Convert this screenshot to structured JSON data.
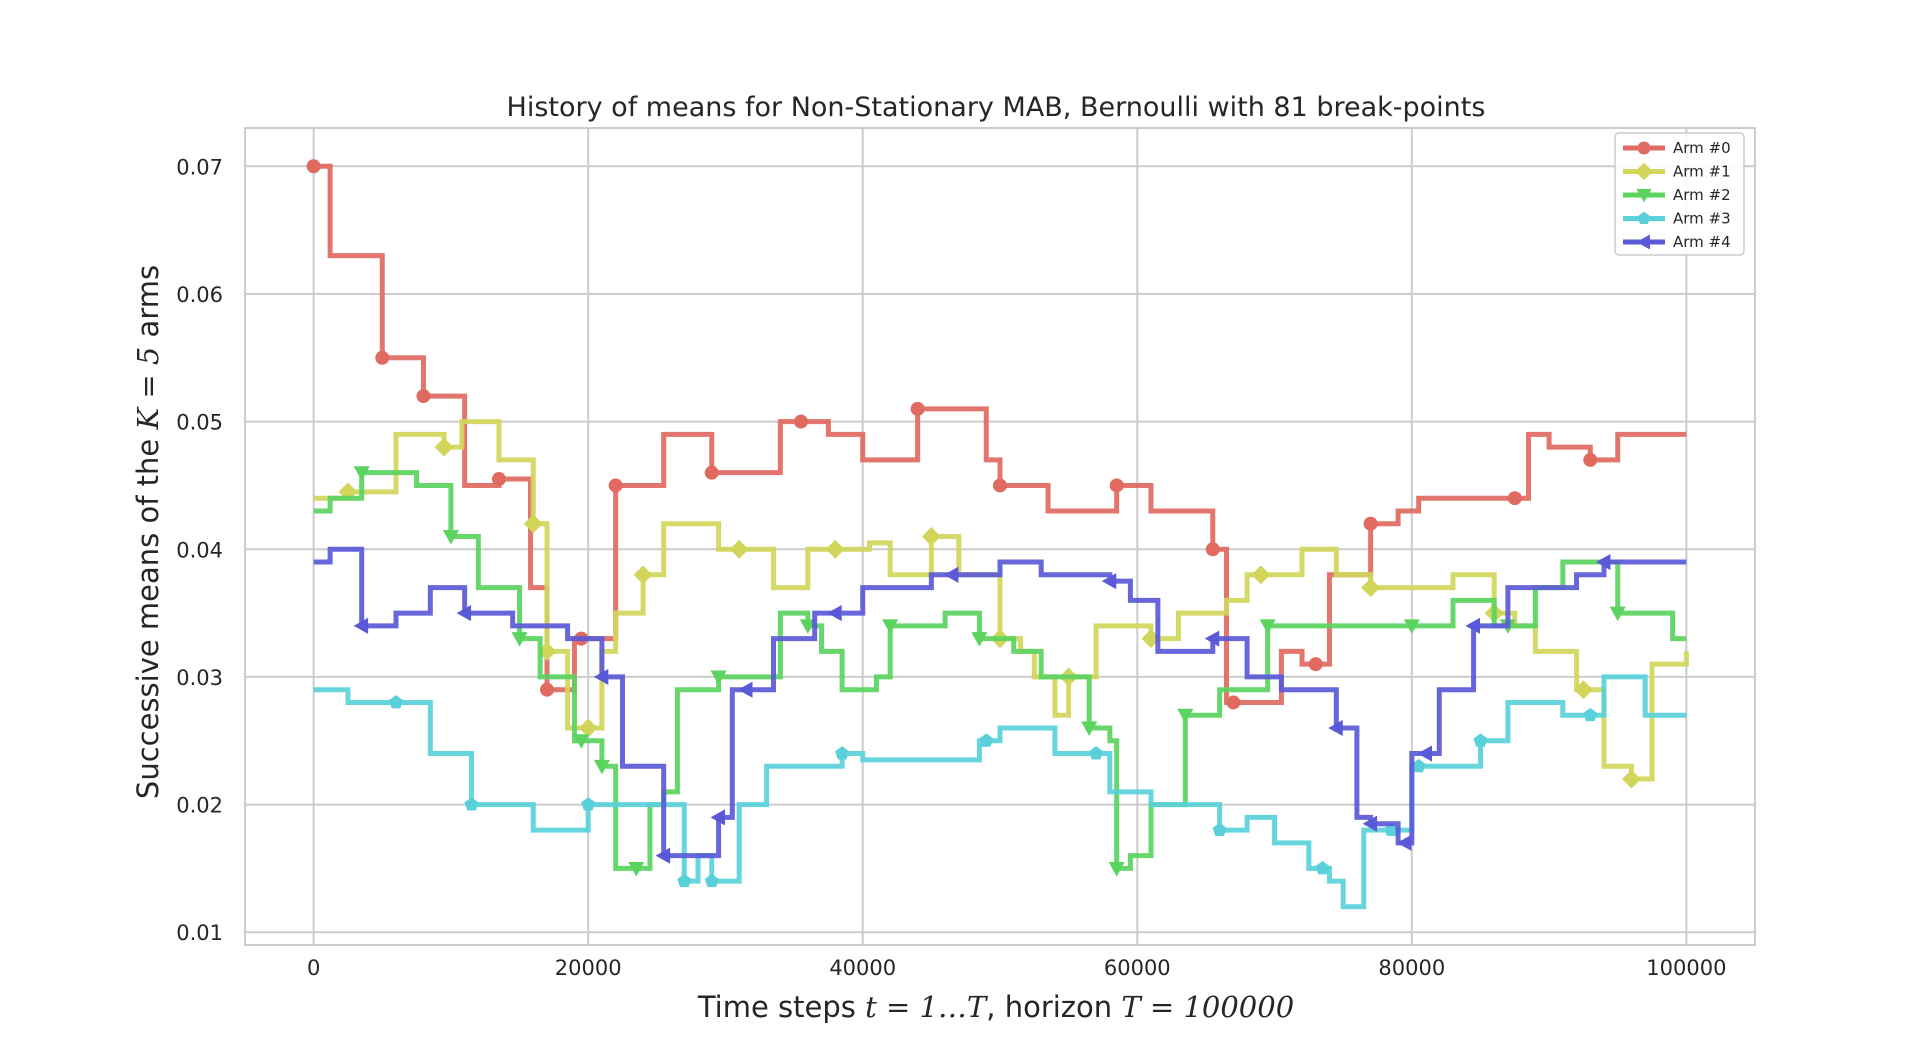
{
  "chart_data": {
    "type": "line",
    "title": "History of means for Non-Stationary MAB, Bernoulli with 81 break-points",
    "xlabel": {
      "prefix": "Time steps ",
      "math1": "t = 1…T",
      "middle": ", horizon ",
      "math2": "T = 100000"
    },
    "ylabel": {
      "prefix": "Successive means of the ",
      "math": "K = 5",
      "suffix": " arms"
    },
    "xlim": [
      -5000,
      105000
    ],
    "ylim": [
      0.009,
      0.073
    ],
    "xticks": [
      0,
      20000,
      40000,
      60000,
      80000,
      100000
    ],
    "xtick_labels": [
      "0",
      "20000",
      "40000",
      "60000",
      "80000",
      "100000"
    ],
    "yticks": [
      0.01,
      0.02,
      0.03,
      0.04,
      0.05,
      0.06,
      0.07
    ],
    "ytick_labels": [
      "0.01",
      "0.02",
      "0.03",
      "0.04",
      "0.05",
      "0.06",
      "0.07"
    ],
    "grid": true,
    "legend_position": "top-right",
    "series": [
      {
        "name": "Arm #0",
        "color": "#e06a5f",
        "marker": "circle",
        "markers_x": [
          0,
          5000,
          8000,
          13500,
          17000,
          19500,
          22000,
          29000,
          35500,
          44000,
          50000,
          58500,
          65500,
          67000,
          73000,
          77000,
          87500,
          93000
        ],
        "x": [
          0,
          1200,
          5000,
          8000,
          11000,
          13500,
          15800,
          17000,
          19000,
          22000,
          25500,
          29000,
          34000,
          35500,
          37500,
          40000,
          44000,
          49000,
          50000,
          53500,
          58500,
          61000,
          65500,
          66500,
          67000,
          70500,
          72000,
          74000,
          77000,
          79000,
          80500,
          87500,
          88500,
          90000,
          93000,
          95000,
          100000
        ],
        "y": [
          0.07,
          0.063,
          0.055,
          0.052,
          0.045,
          0.0455,
          0.037,
          0.029,
          0.033,
          0.045,
          0.049,
          0.046,
          0.05,
          0.05,
          0.049,
          0.047,
          0.051,
          0.047,
          0.045,
          0.043,
          0.045,
          0.043,
          0.04,
          0.028,
          0.028,
          0.032,
          0.031,
          0.038,
          0.042,
          0.043,
          0.044,
          0.044,
          0.049,
          0.048,
          0.047,
          0.049,
          0.049
        ]
      },
      {
        "name": "Arm #1",
        "color": "#d1d65a",
        "marker": "diamond",
        "markers_x": [
          2500,
          9500,
          16000,
          17000,
          20000,
          24000,
          31000,
          38000,
          45000,
          50000,
          55000,
          61000,
          69000,
          77000,
          86000,
          92500,
          96000
        ],
        "x": [
          0,
          2500,
          6000,
          9500,
          10800,
          13500,
          16000,
          17000,
          18500,
          20000,
          21000,
          22000,
          24000,
          25500,
          29500,
          31000,
          33500,
          36000,
          38000,
          40500,
          42000,
          45000,
          47000,
          50000,
          51500,
          52500,
          54000,
          55000,
          57000,
          61000,
          63000,
          66500,
          68000,
          69000,
          72000,
          74500,
          77000,
          79000,
          83000,
          86000,
          87500,
          89000,
          92000,
          92500,
          94000,
          96000,
          97500,
          100000
        ],
        "y": [
          0.044,
          0.0445,
          0.049,
          0.048,
          0.05,
          0.047,
          0.042,
          0.032,
          0.026,
          0.026,
          0.032,
          0.035,
          0.038,
          0.042,
          0.04,
          0.04,
          0.037,
          0.04,
          0.04,
          0.0405,
          0.038,
          0.041,
          0.038,
          0.033,
          0.032,
          0.03,
          0.027,
          0.03,
          0.034,
          0.033,
          0.035,
          0.036,
          0.038,
          0.038,
          0.04,
          0.038,
          0.037,
          0.037,
          0.038,
          0.035,
          0.034,
          0.032,
          0.029,
          0.029,
          0.023,
          0.022,
          0.031,
          0.032
        ]
      },
      {
        "name": "Arm #2",
        "color": "#5ad45f",
        "marker": "triangle-down",
        "markers_x": [
          3500,
          10000,
          15000,
          19500,
          21000,
          23500,
          29500,
          36000,
          42000,
          48500,
          56500,
          58500,
          63500,
          69500,
          80000,
          87000,
          95000
        ],
        "x": [
          0,
          1200,
          3500,
          6000,
          7500,
          10000,
          12000,
          15000,
          16500,
          19000,
          19500,
          20500,
          21000,
          22000,
          24500,
          25500,
          26500,
          29500,
          34000,
          36000,
          37000,
          38500,
          41000,
          42000,
          46000,
          48500,
          51000,
          53000,
          56500,
          58000,
          58500,
          59500,
          61000,
          63500,
          66000,
          69500,
          75000,
          80000,
          83000,
          86000,
          87000,
          89000,
          91000,
          95000,
          99000,
          100000
        ],
        "y": [
          0.043,
          0.044,
          0.046,
          0.046,
          0.045,
          0.041,
          0.037,
          0.033,
          0.03,
          0.025,
          0.025,
          0.025,
          0.023,
          0.015,
          0.02,
          0.021,
          0.029,
          0.03,
          0.035,
          0.034,
          0.032,
          0.029,
          0.03,
          0.034,
          0.035,
          0.033,
          0.032,
          0.03,
          0.026,
          0.025,
          0.015,
          0.016,
          0.02,
          0.027,
          0.029,
          0.034,
          0.034,
          0.034,
          0.036,
          0.034,
          0.034,
          0.037,
          0.039,
          0.035,
          0.033,
          0.033
        ]
      },
      {
        "name": "Arm #3",
        "color": "#5ad1da",
        "marker": "pentagon",
        "markers_x": [
          6000,
          11500,
          20000,
          27000,
          29000,
          38500,
          49000,
          57000,
          66000,
          73500,
          78500,
          80500,
          85000,
          93000
        ],
        "x": [
          0,
          2500,
          6000,
          8500,
          11500,
          12000,
          16000,
          20000,
          23000,
          27000,
          28000,
          29000,
          31000,
          33000,
          38500,
          40000,
          48500,
          50000,
          54000,
          58000,
          61000,
          66000,
          68000,
          70000,
          72500,
          74000,
          75000,
          76500,
          78500,
          80000,
          82000,
          85000,
          87000,
          91000,
          93000,
          94000,
          97000,
          100000
        ],
        "y": [
          0.029,
          0.028,
          0.028,
          0.024,
          0.02,
          0.02,
          0.018,
          0.02,
          0.02,
          0.014,
          0.016,
          0.014,
          0.02,
          0.023,
          0.024,
          0.0235,
          0.025,
          0.026,
          0.024,
          0.021,
          0.02,
          0.018,
          0.019,
          0.017,
          0.015,
          0.014,
          0.012,
          0.018,
          0.018,
          0.023,
          0.023,
          0.025,
          0.028,
          0.027,
          0.027,
          0.03,
          0.027,
          0.027
        ]
      },
      {
        "name": "Arm #4",
        "color": "#5a5ad8",
        "marker": "triangle-left",
        "markers_x": [
          3500,
          11000,
          21000,
          25500,
          29500,
          31500,
          38000,
          46500,
          58000,
          65500,
          74500,
          77000,
          79500,
          81000,
          84500,
          94000
        ],
        "x": [
          0,
          1200,
          3500,
          6000,
          8500,
          11000,
          14500,
          18500,
          21000,
          22500,
          25500,
          29500,
          30500,
          33500,
          36500,
          40000,
          45000,
          50000,
          53000,
          58000,
          59500,
          61500,
          65500,
          68000,
          70500,
          74500,
          76000,
          77000,
          79000,
          80000,
          82000,
          84500,
          87000,
          92000,
          94000,
          100000
        ],
        "y": [
          0.039,
          0.04,
          0.034,
          0.035,
          0.037,
          0.035,
          0.034,
          0.033,
          0.03,
          0.023,
          0.016,
          0.019,
          0.029,
          0.033,
          0.035,
          0.037,
          0.038,
          0.039,
          0.038,
          0.0375,
          0.036,
          0.032,
          0.033,
          0.03,
          0.029,
          0.026,
          0.019,
          0.0185,
          0.017,
          0.024,
          0.029,
          0.034,
          0.037,
          0.038,
          0.039,
          0.039
        ]
      }
    ]
  }
}
